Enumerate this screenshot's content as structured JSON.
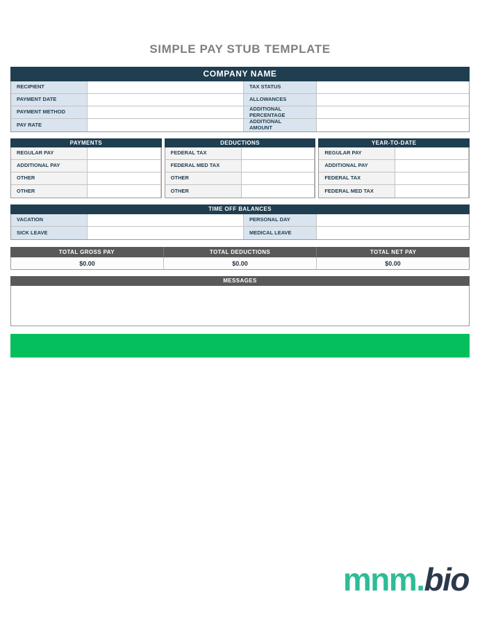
{
  "page": {
    "title": "SIMPLE PAY STUB TEMPLATE"
  },
  "company": {
    "name": "COMPANY NAME"
  },
  "info": {
    "left": [
      {
        "label": "RECIPIENT",
        "value": ""
      },
      {
        "label": "PAYMENT DATE",
        "value": ""
      },
      {
        "label": "PAYMENT METHOD",
        "value": ""
      },
      {
        "label": "PAY RATE",
        "value": ""
      }
    ],
    "right": [
      {
        "label": "TAX STATUS",
        "value": ""
      },
      {
        "label": "ALLOWANCES",
        "value": ""
      },
      {
        "label": "ADDITIONAL PERCENTAGE",
        "value": ""
      },
      {
        "label": "ADDITIONAL AMOUNT",
        "value": ""
      }
    ]
  },
  "breakdown": [
    {
      "header": "PAYMENTS",
      "rows": [
        {
          "label": "REGULAR PAY",
          "value": ""
        },
        {
          "label": "ADDITIONAL PAY",
          "value": ""
        },
        {
          "label": "OTHER",
          "value": ""
        },
        {
          "label": "OTHER",
          "value": ""
        }
      ]
    },
    {
      "header": "DEDUCTIONS",
      "rows": [
        {
          "label": "FEDERAL TAX",
          "value": ""
        },
        {
          "label": "FEDERAL MED TAX",
          "value": ""
        },
        {
          "label": "OTHER",
          "value": ""
        },
        {
          "label": "OTHER",
          "value": ""
        }
      ]
    },
    {
      "header": "YEAR-TO-DATE",
      "rows": [
        {
          "label": "REGULAR PAY",
          "value": ""
        },
        {
          "label": "ADDITIONAL PAY",
          "value": ""
        },
        {
          "label": "FEDERAL TAX",
          "value": ""
        },
        {
          "label": "FEDERAL MED TAX",
          "value": ""
        }
      ]
    }
  ],
  "time_off": {
    "header": "TIME OFF BALANCES",
    "left": [
      {
        "label": "VACATION",
        "value": ""
      },
      {
        "label": "SICK LEAVE",
        "value": ""
      }
    ],
    "right": [
      {
        "label": "PERSONAL DAY",
        "value": ""
      },
      {
        "label": "MEDICAL LEAVE",
        "value": ""
      }
    ]
  },
  "totals": [
    {
      "label": "TOTAL GROSS PAY",
      "value": "$0.00"
    },
    {
      "label": "TOTAL DEDUCTIONS",
      "value": "$0.00"
    },
    {
      "label": "TOTAL NET PAY",
      "value": "$0.00"
    }
  ],
  "messages": {
    "header": "MESSAGES",
    "content": ""
  },
  "footer": {
    "logo_primary": "mnm.",
    "logo_secondary": "bio"
  },
  "colors": {
    "navy": "#1f3e50",
    "label_blue": "#d9e4ee",
    "label_gray": "#f3f3f3",
    "bar_gray": "#595959",
    "accent_green": "#05bf5e",
    "logo_teal": "#2dbd96",
    "logo_navy": "#2b394c",
    "title_gray": "#7f7f7f"
  }
}
